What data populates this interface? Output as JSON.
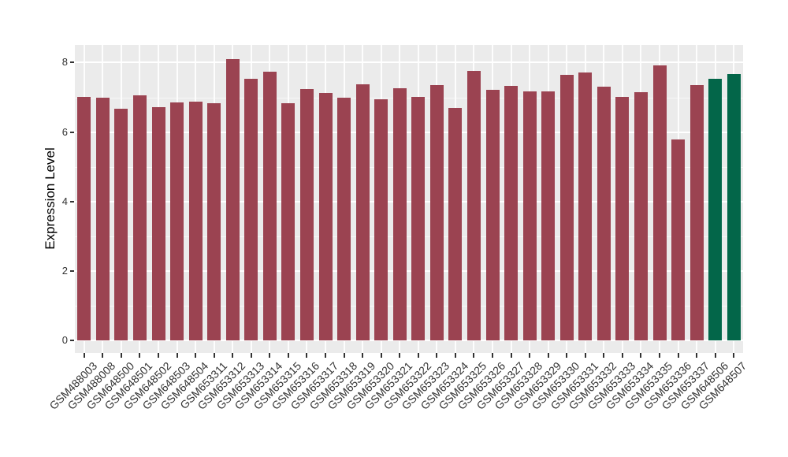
{
  "chart_data": {
    "type": "bar",
    "title": "",
    "xlabel": "",
    "ylabel": "Expression Level",
    "ylim": [
      0,
      8.51
    ],
    "yticks_major": [
      0,
      2,
      4,
      6,
      8
    ],
    "yticks_minor": [
      1,
      3,
      5,
      7
    ],
    "ytick_labels": [
      "0",
      "2",
      "4",
      "6",
      "8"
    ],
    "grid": true,
    "legend_position": "none",
    "categories": [
      "GSM488003",
      "GSM488008",
      "GSM648500",
      "GSM648501",
      "GSM648502",
      "GSM648503",
      "GSM648504",
      "GSM653311",
      "GSM653312",
      "GSM653313",
      "GSM653314",
      "GSM653315",
      "GSM653316",
      "GSM653317",
      "GSM653318",
      "GSM653319",
      "GSM653320",
      "GSM653321",
      "GSM653322",
      "GSM653323",
      "GSM653324",
      "GSM653325",
      "GSM653326",
      "GSM653327",
      "GSM653328",
      "GSM653329",
      "GSM653330",
      "GSM653331",
      "GSM653332",
      "GSM653333",
      "GSM653334",
      "GSM653335",
      "GSM653336",
      "GSM653337",
      "GSM648506",
      "GSM648507"
    ],
    "values": [
      7.01,
      7.0,
      6.68,
      7.06,
      6.72,
      6.85,
      6.88,
      6.82,
      8.11,
      7.53,
      7.74,
      6.83,
      7.24,
      7.12,
      6.98,
      7.37,
      6.94,
      7.27,
      7.02,
      7.35,
      6.7,
      7.76,
      7.21,
      7.34,
      7.17,
      7.16,
      7.64,
      7.71,
      7.31,
      7.01,
      7.14,
      7.91,
      5.78,
      7.36,
      7.53,
      7.68
    ],
    "bar_default_color": "#9B4351",
    "bar_highlight_color": "#036649",
    "highlighted_categories": [
      "GSM648506",
      "GSM648507"
    ],
    "panel_background": "#EBEBEB",
    "gridline_color": "#FFFFFF",
    "axis_text_color": "#333333",
    "tick_mark_color": "#333333"
  }
}
